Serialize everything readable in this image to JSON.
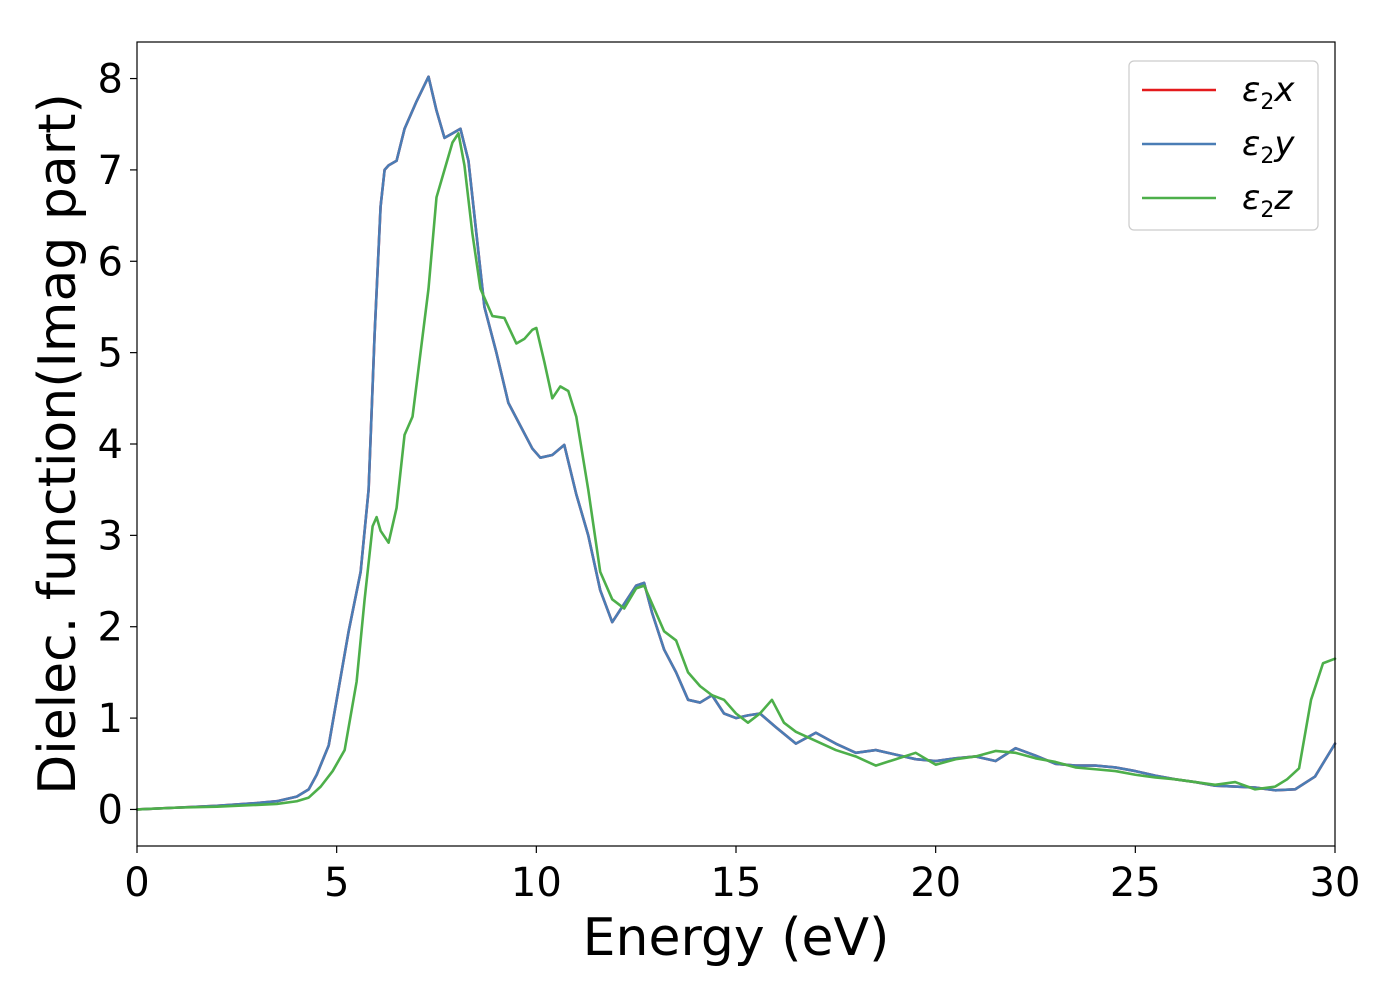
{
  "chart_data": {
    "type": "line",
    "title": "",
    "xlabel": "Energy (eV)",
    "ylabel": "Dielec. function(Imag part)",
    "xlim": [
      0,
      30
    ],
    "ylim": [
      -0.4,
      8.4
    ],
    "xticks": [
      0,
      5,
      10,
      15,
      20,
      25,
      30
    ],
    "yticks": [
      0,
      1,
      2,
      3,
      4,
      5,
      6,
      7,
      8
    ],
    "grid": false,
    "legend": {
      "position": "top-right",
      "entries": [
        {
          "symbol": "ε",
          "sub": "2",
          "suffix": "x"
        },
        {
          "symbol": "ε",
          "sub": "2",
          "suffix": "y"
        },
        {
          "symbol": "ε",
          "sub": "2",
          "suffix": "z"
        }
      ]
    },
    "series": [
      {
        "name": "ε2x",
        "color": "#e41a1c",
        "x": [
          0,
          1,
          2,
          3,
          3.5,
          4,
          4.3,
          4.5,
          4.8,
          5,
          5.3,
          5.6,
          5.8,
          5.95,
          6.1,
          6.2,
          6.3,
          6.5,
          6.7,
          7,
          7.3,
          7.5,
          7.7,
          7.9,
          8.1,
          8.3,
          8.5,
          8.7,
          9,
          9.3,
          9.6,
          9.9,
          10.1,
          10.4,
          10.7,
          11,
          11.3,
          11.6,
          11.9,
          12.2,
          12.5,
          12.7,
          12.9,
          13.2,
          13.5,
          13.8,
          14.1,
          14.4,
          14.7,
          15,
          15.3,
          15.6,
          16,
          16.5,
          17,
          17.5,
          18,
          18.5,
          19,
          19.5,
          20,
          20.5,
          21,
          21.5,
          22,
          22.5,
          23,
          23.5,
          24,
          24.5,
          25,
          25.5,
          26,
          26.5,
          27,
          27.5,
          28,
          28.5,
          29,
          29.5,
          30
        ],
        "y": [
          0.0,
          0.02,
          0.04,
          0.07,
          0.09,
          0.14,
          0.22,
          0.38,
          0.7,
          1.2,
          1.95,
          2.6,
          3.5,
          5.2,
          6.6,
          7.0,
          7.05,
          7.1,
          7.45,
          7.75,
          8.02,
          7.65,
          7.35,
          7.4,
          7.45,
          7.1,
          6.3,
          5.5,
          5.0,
          4.45,
          4.2,
          3.95,
          3.85,
          3.88,
          3.99,
          3.45,
          3.0,
          2.4,
          2.05,
          2.25,
          2.45,
          2.48,
          2.15,
          1.75,
          1.5,
          1.2,
          1.17,
          1.25,
          1.05,
          1.0,
          1.03,
          1.05,
          0.9,
          0.72,
          0.84,
          0.72,
          0.62,
          0.65,
          0.6,
          0.55,
          0.53,
          0.56,
          0.58,
          0.53,
          0.67,
          0.59,
          0.5,
          0.48,
          0.48,
          0.46,
          0.42,
          0.37,
          0.33,
          0.3,
          0.26,
          0.25,
          0.24,
          0.21,
          0.22,
          0.36,
          0.72
        ]
      },
      {
        "name": "ε2y",
        "color": "#4a7db5",
        "x": [
          0,
          1,
          2,
          3,
          3.5,
          4,
          4.3,
          4.5,
          4.8,
          5,
          5.3,
          5.6,
          5.8,
          5.95,
          6.1,
          6.2,
          6.3,
          6.5,
          6.7,
          7,
          7.3,
          7.5,
          7.7,
          7.9,
          8.1,
          8.3,
          8.5,
          8.7,
          9,
          9.3,
          9.6,
          9.9,
          10.1,
          10.4,
          10.7,
          11,
          11.3,
          11.6,
          11.9,
          12.2,
          12.5,
          12.7,
          12.9,
          13.2,
          13.5,
          13.8,
          14.1,
          14.4,
          14.7,
          15,
          15.3,
          15.6,
          16,
          16.5,
          17,
          17.5,
          18,
          18.5,
          19,
          19.5,
          20,
          20.5,
          21,
          21.5,
          22,
          22.5,
          23,
          23.5,
          24,
          24.5,
          25,
          25.5,
          26,
          26.5,
          27,
          27.5,
          28,
          28.5,
          29,
          29.5,
          30
        ],
        "y": [
          0.0,
          0.02,
          0.04,
          0.07,
          0.09,
          0.14,
          0.22,
          0.38,
          0.7,
          1.2,
          1.95,
          2.6,
          3.5,
          5.2,
          6.6,
          7.0,
          7.05,
          7.1,
          7.45,
          7.75,
          8.02,
          7.65,
          7.35,
          7.4,
          7.45,
          7.1,
          6.3,
          5.5,
          5.0,
          4.45,
          4.2,
          3.95,
          3.85,
          3.88,
          3.99,
          3.45,
          3.0,
          2.4,
          2.05,
          2.25,
          2.45,
          2.48,
          2.15,
          1.75,
          1.5,
          1.2,
          1.17,
          1.25,
          1.05,
          1.0,
          1.03,
          1.05,
          0.9,
          0.72,
          0.84,
          0.72,
          0.62,
          0.65,
          0.6,
          0.55,
          0.53,
          0.56,
          0.58,
          0.53,
          0.67,
          0.59,
          0.5,
          0.48,
          0.48,
          0.46,
          0.42,
          0.37,
          0.33,
          0.3,
          0.26,
          0.25,
          0.24,
          0.21,
          0.22,
          0.36,
          0.72
        ]
      },
      {
        "name": "ε2z",
        "color": "#4daf4a",
        "x": [
          0,
          1,
          2,
          3,
          3.5,
          4,
          4.3,
          4.6,
          4.9,
          5.2,
          5.5,
          5.7,
          5.9,
          6.0,
          6.1,
          6.3,
          6.5,
          6.7,
          6.9,
          7.1,
          7.3,
          7.5,
          7.7,
          7.9,
          8.05,
          8.2,
          8.4,
          8.6,
          8.9,
          9.2,
          9.5,
          9.7,
          9.9,
          10.0,
          10.2,
          10.4,
          10.6,
          10.8,
          11.0,
          11.3,
          11.6,
          11.9,
          12.2,
          12.5,
          12.7,
          12.9,
          13.2,
          13.5,
          13.8,
          14.1,
          14.4,
          14.7,
          15,
          15.3,
          15.6,
          15.9,
          16.2,
          16.5,
          17,
          17.5,
          18,
          18.5,
          19,
          19.5,
          20,
          20.5,
          21,
          21.5,
          22,
          22.5,
          23,
          23.5,
          24,
          24.5,
          25,
          25.5,
          26,
          26.5,
          27,
          27.5,
          28,
          28.5,
          28.8,
          29.1,
          29.4,
          29.7,
          30
        ],
        "y": [
          0.0,
          0.02,
          0.03,
          0.05,
          0.06,
          0.09,
          0.13,
          0.25,
          0.42,
          0.65,
          1.4,
          2.3,
          3.1,
          3.2,
          3.05,
          2.92,
          3.3,
          4.1,
          4.3,
          5.0,
          5.7,
          6.7,
          7.0,
          7.3,
          7.4,
          7.05,
          6.3,
          5.7,
          5.4,
          5.38,
          5.1,
          5.15,
          5.25,
          5.27,
          4.9,
          4.5,
          4.63,
          4.58,
          4.3,
          3.5,
          2.6,
          2.3,
          2.2,
          2.42,
          2.45,
          2.25,
          1.95,
          1.85,
          1.5,
          1.35,
          1.25,
          1.2,
          1.05,
          0.95,
          1.05,
          1.2,
          0.95,
          0.85,
          0.75,
          0.65,
          0.58,
          0.48,
          0.55,
          0.62,
          0.49,
          0.55,
          0.58,
          0.64,
          0.62,
          0.56,
          0.52,
          0.46,
          0.44,
          0.42,
          0.38,
          0.35,
          0.33,
          0.3,
          0.27,
          0.3,
          0.22,
          0.25,
          0.33,
          0.45,
          1.2,
          1.6,
          1.65
        ]
      }
    ]
  }
}
